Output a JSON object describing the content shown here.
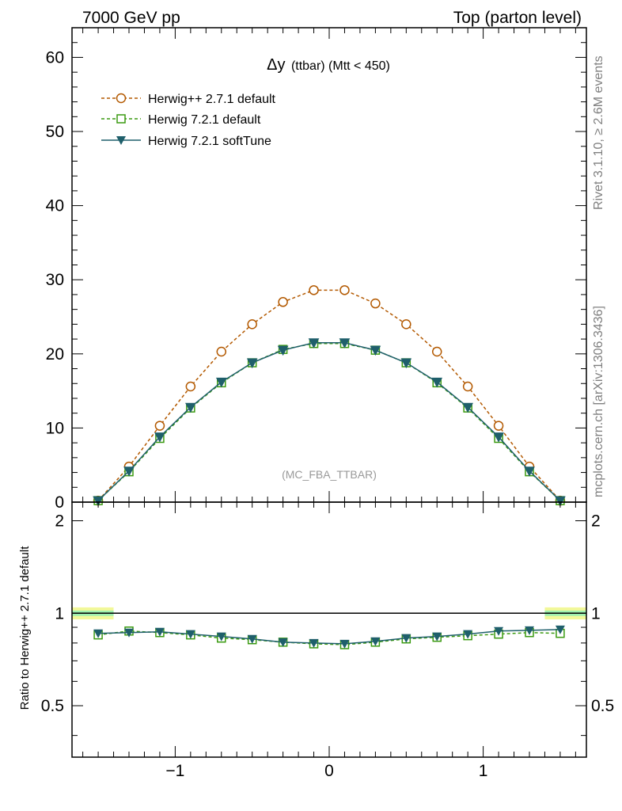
{
  "header": {
    "left": "7000 GeV pp",
    "right": "Top (parton level)"
  },
  "side_labels": {
    "rivet": "Rivet 3.1.10, ≥ 2.6M events",
    "mcplots": "mcplots.cern.ch [arXiv:1306.3436]"
  },
  "colors": {
    "herwigpp": "#b35900",
    "herwig721": "#3a9a10",
    "softtune": "#1f5f6b",
    "band_outer": "#f2f89a",
    "band_inner": "#9ef0b0"
  },
  "chart_data": [
    {
      "type": "line",
      "title_main": "Δy",
      "title_sub": "(ttbar) (Mtt < 450)",
      "watermark": "(MC_FBA_TTBAR)",
      "xlabel": "",
      "ylabel": "",
      "xlim": [
        -1.67,
        1.67
      ],
      "ylim": [
        0,
        64
      ],
      "yticks": [
        "0",
        "10",
        "20",
        "30",
        "40",
        "50",
        "60"
      ],
      "legend_position": "top-left",
      "x": [
        -1.5,
        -1.3,
        -1.1,
        -0.9,
        -0.7,
        -0.5,
        -0.3,
        -0.1,
        0.1,
        0.3,
        0.5,
        0.7,
        0.9,
        1.1,
        1.3,
        1.5
      ],
      "series": [
        {
          "name": "Herwig++ 2.7.1 default",
          "marker": "open-circle",
          "dashed": true,
          "values": [
            0.2,
            4.8,
            10.3,
            15.6,
            20.3,
            24.0,
            27.0,
            28.6,
            28.6,
            26.8,
            24.0,
            20.3,
            15.6,
            10.3,
            4.8,
            0.2
          ]
        },
        {
          "name": "Herwig 7.2.1 default",
          "marker": "open-square",
          "dashed": true,
          "values": [
            0.2,
            4.1,
            8.6,
            12.7,
            16.1,
            18.8,
            20.6,
            21.4,
            21.4,
            20.5,
            18.8,
            16.1,
            12.7,
            8.6,
            4.1,
            0.2
          ]
        },
        {
          "name": "Herwig 7.2.1 softTune",
          "marker": "filled-triangle-down",
          "dashed": false,
          "values": [
            0.2,
            4.2,
            8.8,
            12.8,
            16.2,
            18.8,
            20.5,
            21.5,
            21.5,
            20.5,
            18.8,
            16.2,
            12.8,
            8.8,
            4.2,
            0.2
          ]
        }
      ]
    },
    {
      "type": "line",
      "ylabel": "Ratio to Herwig++ 2.7.1 default",
      "xlim": [
        -1.67,
        1.67
      ],
      "ylim": [
        0.34,
        2.3
      ],
      "yticks": [
        "0.5",
        "1",
        "2"
      ],
      "xticks": [
        "−1",
        "0",
        "1"
      ],
      "x": [
        -1.5,
        -1.3,
        -1.1,
        -0.9,
        -0.7,
        -0.5,
        -0.3,
        -0.1,
        0.1,
        0.3,
        0.5,
        0.7,
        0.9,
        1.1,
        1.3,
        1.5
      ],
      "series": [
        {
          "name": "Herwig++ 2.7.1 default",
          "values": [
            1,
            1,
            1,
            1,
            1,
            1,
            1,
            1,
            1,
            1,
            1,
            1,
            1,
            1,
            1,
            1
          ]
        },
        {
          "name": "Herwig 7.2.1 default",
          "values": [
            0.85,
            0.875,
            0.865,
            0.85,
            0.83,
            0.82,
            0.805,
            0.795,
            0.79,
            0.805,
            0.825,
            0.835,
            0.845,
            0.855,
            0.865,
            0.86
          ]
        },
        {
          "name": "Herwig 7.2.1 softTune",
          "values": [
            0.86,
            0.865,
            0.87,
            0.855,
            0.84,
            0.825,
            0.805,
            0.8,
            0.795,
            0.81,
            0.83,
            0.84,
            0.855,
            0.875,
            0.88,
            0.885
          ]
        }
      ]
    }
  ]
}
